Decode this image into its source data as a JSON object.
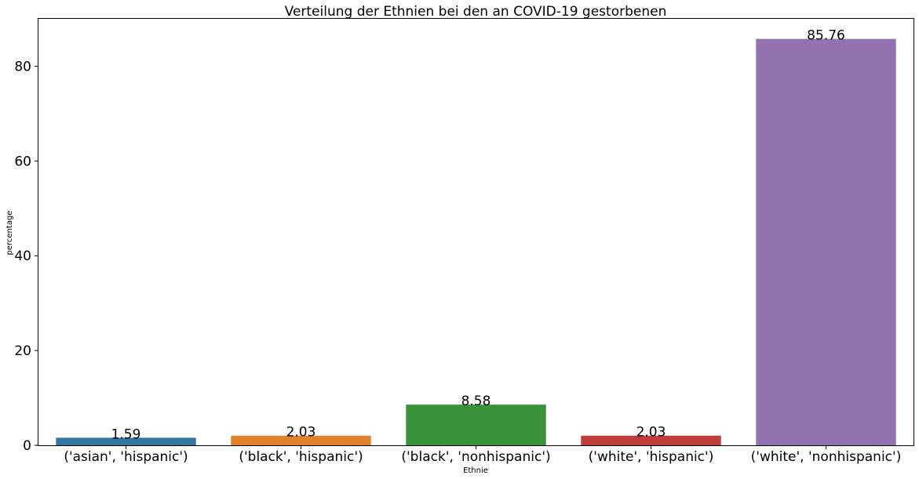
{
  "chart_data": {
    "type": "bar",
    "title": "Verteilung der Ethnien bei den an COVID-19 gestorbenen",
    "xlabel": "Ethnie",
    "ylabel": "percentage",
    "categories": [
      "('asian', 'hispanic')",
      "('black', 'hispanic')",
      "('black', 'nonhispanic')",
      "('white', 'hispanic')",
      "('white', 'nonhispanic')"
    ],
    "values": [
      1.59,
      2.03,
      8.58,
      2.03,
      85.76
    ],
    "value_labels": [
      "1.59",
      "2.03",
      "8.58",
      "2.03",
      "85.76"
    ],
    "colors": [
      "#3274a1",
      "#e1812c",
      "#3a923a",
      "#c03d3e",
      "#9372b2"
    ],
    "ylim": [
      0,
      90
    ],
    "yticks": [
      0,
      20,
      40,
      60,
      80
    ],
    "grid": false,
    "legend": "none"
  }
}
